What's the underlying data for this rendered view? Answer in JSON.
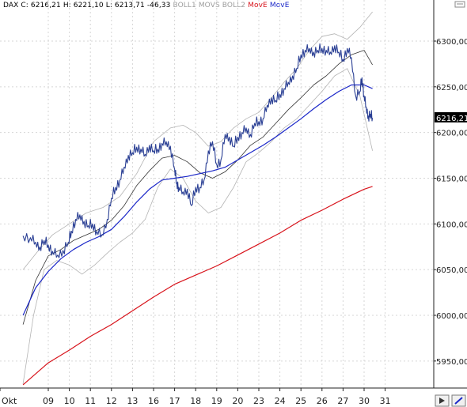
{
  "legend": {
    "instrument": "DAX",
    "close": "C: 6216,21",
    "high": "H: 6221,10",
    "low": "L: 6213,71",
    "change": "-46,33",
    "boll1": "BOLL1",
    "movs": "MOVS",
    "boll2": "BOLL2",
    "move_red": "MovE",
    "move_blue": "MovE"
  },
  "colors": {
    "price": "#2a3f94",
    "boll": "#b3b3b3",
    "movs": "#333333",
    "move_red": "#d8141c",
    "move_blue": "#1a26c8",
    "legend_gray": "#9c9c9c",
    "grid": "#d6d6d6",
    "last_price_bg": "#000000"
  },
  "chart_data": {
    "type": "line",
    "y_ticks": [
      "5950,00",
      "6000,00",
      "6050,00",
      "6100,00",
      "6150,00",
      "6200,00",
      "6250,00",
      "6300,00"
    ],
    "y_tick_values": [
      5950,
      6000,
      6050,
      6100,
      6150,
      6200,
      6250,
      6300
    ],
    "ylim": [
      5920,
      6335
    ],
    "x_ticks": [
      "Okt",
      "09",
      "10",
      "11",
      "12",
      "13",
      "16",
      "17",
      "18",
      "19",
      "20",
      "23",
      "24",
      "25",
      "26",
      "27",
      "30",
      "31"
    ],
    "x_tick_index": [
      -1,
      0,
      1,
      2,
      3,
      4,
      5,
      6,
      7,
      8,
      9,
      10,
      11,
      12,
      13,
      14,
      15,
      16
    ],
    "last_price": "6216,21",
    "last_price_value": 6216.21,
    "grid": true,
    "series": [
      {
        "role": "price",
        "x": [
          -1.2,
          -0.85,
          -0.6,
          -0.4,
          -0.2,
          0.0,
          0.2,
          0.45,
          0.7,
          0.95,
          1.1,
          1.3,
          1.5,
          1.7,
          1.9,
          2.1,
          2.3,
          2.55,
          2.8,
          3.0,
          3.2,
          3.4,
          3.6,
          3.8,
          4.0,
          4.2,
          4.4,
          4.6,
          4.8,
          5.0,
          5.2,
          5.4,
          5.6,
          5.8,
          6.0,
          6.1,
          6.2,
          6.4,
          6.6,
          6.8,
          7.0,
          7.2,
          7.4,
          7.6,
          7.8,
          8.0,
          8.2,
          8.4,
          8.6,
          8.8,
          9.0,
          9.2,
          9.4,
          9.6,
          9.8,
          10.0,
          10.2,
          10.4,
          10.6,
          10.8,
          11.0,
          11.2,
          11.4,
          11.6,
          11.8,
          12.0,
          12.2,
          12.4,
          12.6,
          12.8,
          13.0,
          13.2,
          13.4,
          13.6,
          13.8,
          14.0,
          14.2,
          14.4,
          14.6,
          14.8,
          14.9,
          15.0,
          15.1,
          15.2,
          15.3,
          15.4
        ],
        "values": [
          6087,
          6085,
          6080,
          6075,
          6082,
          6077,
          6070,
          6066,
          6071,
          6080,
          6092,
          6105,
          6110,
          6103,
          6098,
          6100,
          6092,
          6088,
          6105,
          6128,
          6140,
          6148,
          6162,
          6175,
          6178,
          6184,
          6182,
          6176,
          6186,
          6180,
          6182,
          6188,
          6190,
          6185,
          6160,
          6145,
          6140,
          6135,
          6138,
          6120,
          6140,
          6140,
          6148,
          6180,
          6190,
          6165,
          6170,
          6198,
          6195,
          6185,
          6195,
          6200,
          6205,
          6198,
          6210,
          6212,
          6215,
          6230,
          6238,
          6235,
          6242,
          6248,
          6255,
          6262,
          6270,
          6285,
          6290,
          6292,
          6288,
          6290,
          6292,
          6290,
          6288,
          6295,
          6288,
          6280,
          6292,
          6282,
          6240,
          6245,
          6260,
          6240,
          6228,
          6218,
          6220,
          6216
        ]
      },
      {
        "role": "boll-upper",
        "x": [
          -1.2,
          -0.5,
          0.2,
          1.0,
          1.8,
          2.6,
          3.4,
          4.2,
          5.0,
          5.8,
          6.4,
          7.0,
          7.6,
          8.2,
          8.8,
          9.4,
          10.0,
          10.6,
          11.2,
          11.8,
          12.4,
          13.0,
          13.6,
          14.2,
          14.8,
          15.4
        ],
        "values": [
          6050,
          6070,
          6088,
          6100,
          6112,
          6118,
          6130,
          6155,
          6190,
          6205,
          6208,
          6200,
          6185,
          6190,
          6205,
          6215,
          6222,
          6238,
          6255,
          6270,
          6290,
          6305,
          6308,
          6302,
          6315,
          6332
        ]
      },
      {
        "role": "boll-lower",
        "x": [
          -1.2,
          -0.7,
          -0.2,
          0.4,
          1.0,
          1.6,
          2.2,
          2.8,
          3.4,
          4.0,
          4.6,
          5.2,
          5.8,
          6.4,
          7.0,
          7.6,
          8.2,
          8.8,
          9.4,
          10.0,
          10.6,
          11.2,
          11.8,
          12.4,
          13.0,
          13.6,
          14.2,
          14.8,
          15.4
        ],
        "values": [
          5925,
          6000,
          6050,
          6060,
          6055,
          6045,
          6055,
          6068,
          6080,
          6090,
          6105,
          6140,
          6160,
          6150,
          6125,
          6112,
          6118,
          6140,
          6168,
          6178,
          6190,
          6205,
          6215,
          6230,
          6245,
          6262,
          6270,
          6240,
          6180
        ]
      },
      {
        "role": "movs",
        "x": [
          -1.2,
          -0.6,
          0.0,
          0.6,
          1.2,
          1.8,
          2.4,
          3.0,
          3.6,
          4.2,
          4.8,
          5.4,
          6.0,
          6.6,
          7.2,
          7.8,
          8.4,
          9.0,
          9.6,
          10.2,
          10.8,
          11.4,
          12.0,
          12.6,
          13.2,
          13.8,
          14.4,
          15.0,
          15.4
        ],
        "values": [
          5990,
          6038,
          6065,
          6072,
          6082,
          6088,
          6094,
          6104,
          6120,
          6142,
          6158,
          6172,
          6175,
          6168,
          6156,
          6150,
          6157,
          6170,
          6186,
          6195,
          6210,
          6225,
          6238,
          6252,
          6262,
          6275,
          6285,
          6290,
          6274
        ]
      },
      {
        "role": "move-blue",
        "x": [
          -1.2,
          -0.6,
          0.0,
          0.6,
          1.2,
          1.8,
          2.4,
          3.0,
          3.6,
          4.2,
          4.8,
          5.4,
          6.0,
          6.6,
          7.2,
          7.8,
          8.4,
          9.0,
          9.6,
          10.2,
          10.8,
          11.4,
          12.0,
          12.6,
          13.2,
          13.8,
          14.4,
          15.0,
          15.4
        ],
        "values": [
          6000,
          6030,
          6048,
          6062,
          6072,
          6080,
          6086,
          6094,
          6108,
          6124,
          6138,
          6148,
          6150,
          6152,
          6155,
          6158,
          6162,
          6170,
          6178,
          6186,
          6195,
          6205,
          6215,
          6226,
          6236,
          6245,
          6252,
          6252,
          6248
        ]
      },
      {
        "role": "move-red",
        "x": [
          -1.2,
          0.0,
          1.0,
          2.0,
          3.0,
          4.0,
          5.0,
          6.0,
          7.0,
          8.0,
          9.0,
          10.0,
          11.0,
          12.0,
          13.0,
          14.0,
          15.0,
          15.4
        ],
        "values": [
          5924,
          5948,
          5962,
          5977,
          5990,
          6005,
          6020,
          6034,
          6044,
          6054,
          6066,
          6078,
          6090,
          6104,
          6115,
          6127,
          6138,
          6141
        ]
      }
    ]
  }
}
